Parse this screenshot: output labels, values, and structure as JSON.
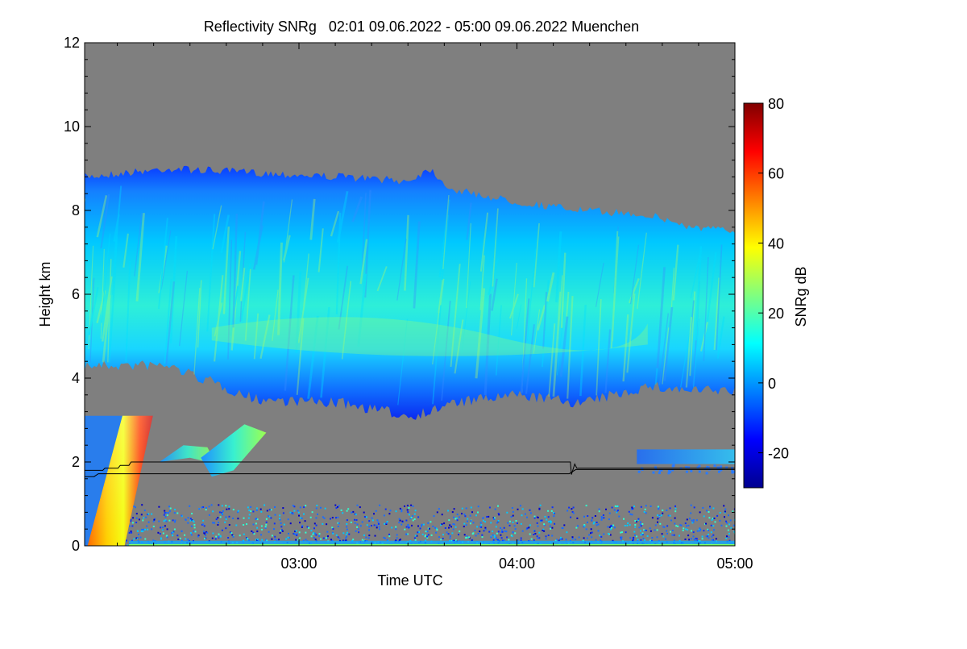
{
  "chart_data": {
    "type": "heatmap",
    "title": "Reflectivity SNRg   02:01 09.06.2022 - 05:00 09.06.2022 Muenchen",
    "xlabel": "Time UTC",
    "ylabel": "Height km",
    "x_range_hours": [
      2.0167,
      5.0
    ],
    "y_range_km": [
      0,
      12
    ],
    "x_ticks": [
      {
        "label": "03:00",
        "hours": 3.0
      },
      {
        "label": "04:00",
        "hours": 4.0
      },
      {
        "label": "05:00",
        "hours": 5.0
      }
    ],
    "x_minor_step_hours": 0.16667,
    "y_ticks": [
      0,
      2,
      4,
      6,
      8,
      10,
      12
    ],
    "y_minor_step_km": 0.4,
    "no_signal_color": "#7f7f7f",
    "colorbar": {
      "label": "SNRg dB",
      "range_db": [
        -30,
        80
      ],
      "ticks": [
        -20,
        0,
        20,
        40,
        60,
        80
      ],
      "colormap": "jet"
    },
    "echo_regions": [
      {
        "name": "stratiform cloud",
        "snr_db_range": [
          -10,
          25
        ],
        "times_hours": [
          2.0167,
          2.4,
          2.8,
          3.2,
          3.5,
          3.6,
          3.7,
          4.0,
          4.3,
          4.6,
          4.8,
          5.0
        ],
        "top_km": [
          8.8,
          9.0,
          8.9,
          8.8,
          8.7,
          9.0,
          8.5,
          8.2,
          8.0,
          7.9,
          7.6,
          7.5
        ],
        "base_km": [
          4.3,
          4.3,
          3.5,
          3.4,
          3.1,
          3.2,
          3.4,
          3.6,
          3.4,
          3.8,
          3.7,
          3.7
        ]
      },
      {
        "name": "precipitation shaft",
        "snr_db_range": [
          20,
          70
        ],
        "base_left_hours": 2.03,
        "base_right_hours": 2.2,
        "top_left_hours": 2.19,
        "top_right_hours": 2.33,
        "top_km": 3.1
      },
      {
        "name": "mid-level fragments",
        "snr_db_range": [
          -5,
          20
        ],
        "time_hours": [
          2.35,
          2.85
        ],
        "height_km": [
          1.7,
          2.9
        ]
      },
      {
        "name": "low-level band",
        "snr_db_range": [
          -10,
          5
        ],
        "time_hours": [
          4.55,
          5.0
        ],
        "height_km": [
          1.4,
          2.3
        ]
      },
      {
        "name": "near-surface noise",
        "snr_db_range": [
          -15,
          10
        ],
        "time_hours": [
          2.2,
          5.0
        ],
        "height_km": [
          0,
          1.0
        ]
      }
    ],
    "boundary_layer_height": {
      "times_hours": [
        2.0167,
        2.1,
        2.11,
        2.17,
        2.18,
        2.22,
        2.23,
        4.245,
        4.25,
        4.265,
        4.275,
        5.0
      ],
      "heights_km": [
        1.8,
        1.8,
        1.85,
        1.85,
        1.92,
        1.92,
        2.0,
        2.0,
        1.7,
        1.95,
        1.85,
        1.85
      ]
    },
    "boundary_layer_height_2": {
      "times_hours": [
        2.0167,
        2.06,
        2.08,
        2.2,
        2.24,
        4.24,
        4.27,
        5.0
      ],
      "heights_km": [
        1.65,
        1.65,
        1.72,
        1.72,
        1.72,
        1.72,
        1.82,
        1.82
      ]
    }
  }
}
